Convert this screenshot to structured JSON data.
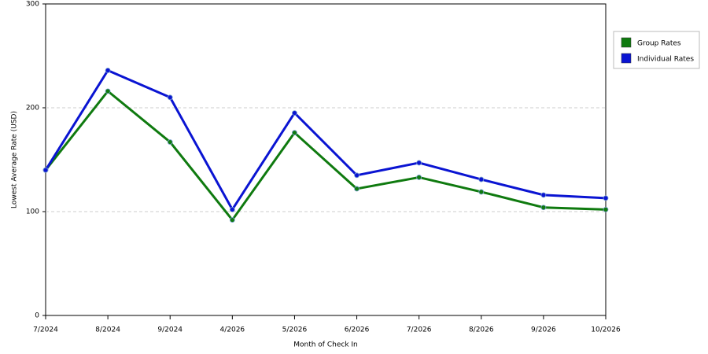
{
  "chart_data": {
    "type": "line",
    "x_label": "Month of Check In",
    "y_label": "Lowest Average Rate (USD)",
    "categories": [
      "7/2024",
      "8/2024",
      "9/2024",
      "4/2026",
      "5/2026",
      "6/2026",
      "7/2026",
      "8/2026",
      "9/2026",
      "10/2026"
    ],
    "series": [
      {
        "name": "Group Rates",
        "color": "#0f7a0f",
        "values": [
          140,
          216,
          167,
          92,
          176,
          122,
          133,
          119,
          104,
          102
        ]
      },
      {
        "name": "Individual Rates",
        "color": "#0a14d2",
        "values": [
          140,
          236,
          210,
          102,
          195,
          135,
          147,
          131,
          116,
          113
        ]
      }
    ],
    "ylim": [
      0,
      300
    ],
    "yticks": [
      0,
      100,
      200,
      300
    ],
    "grid": true,
    "legend": "right"
  }
}
